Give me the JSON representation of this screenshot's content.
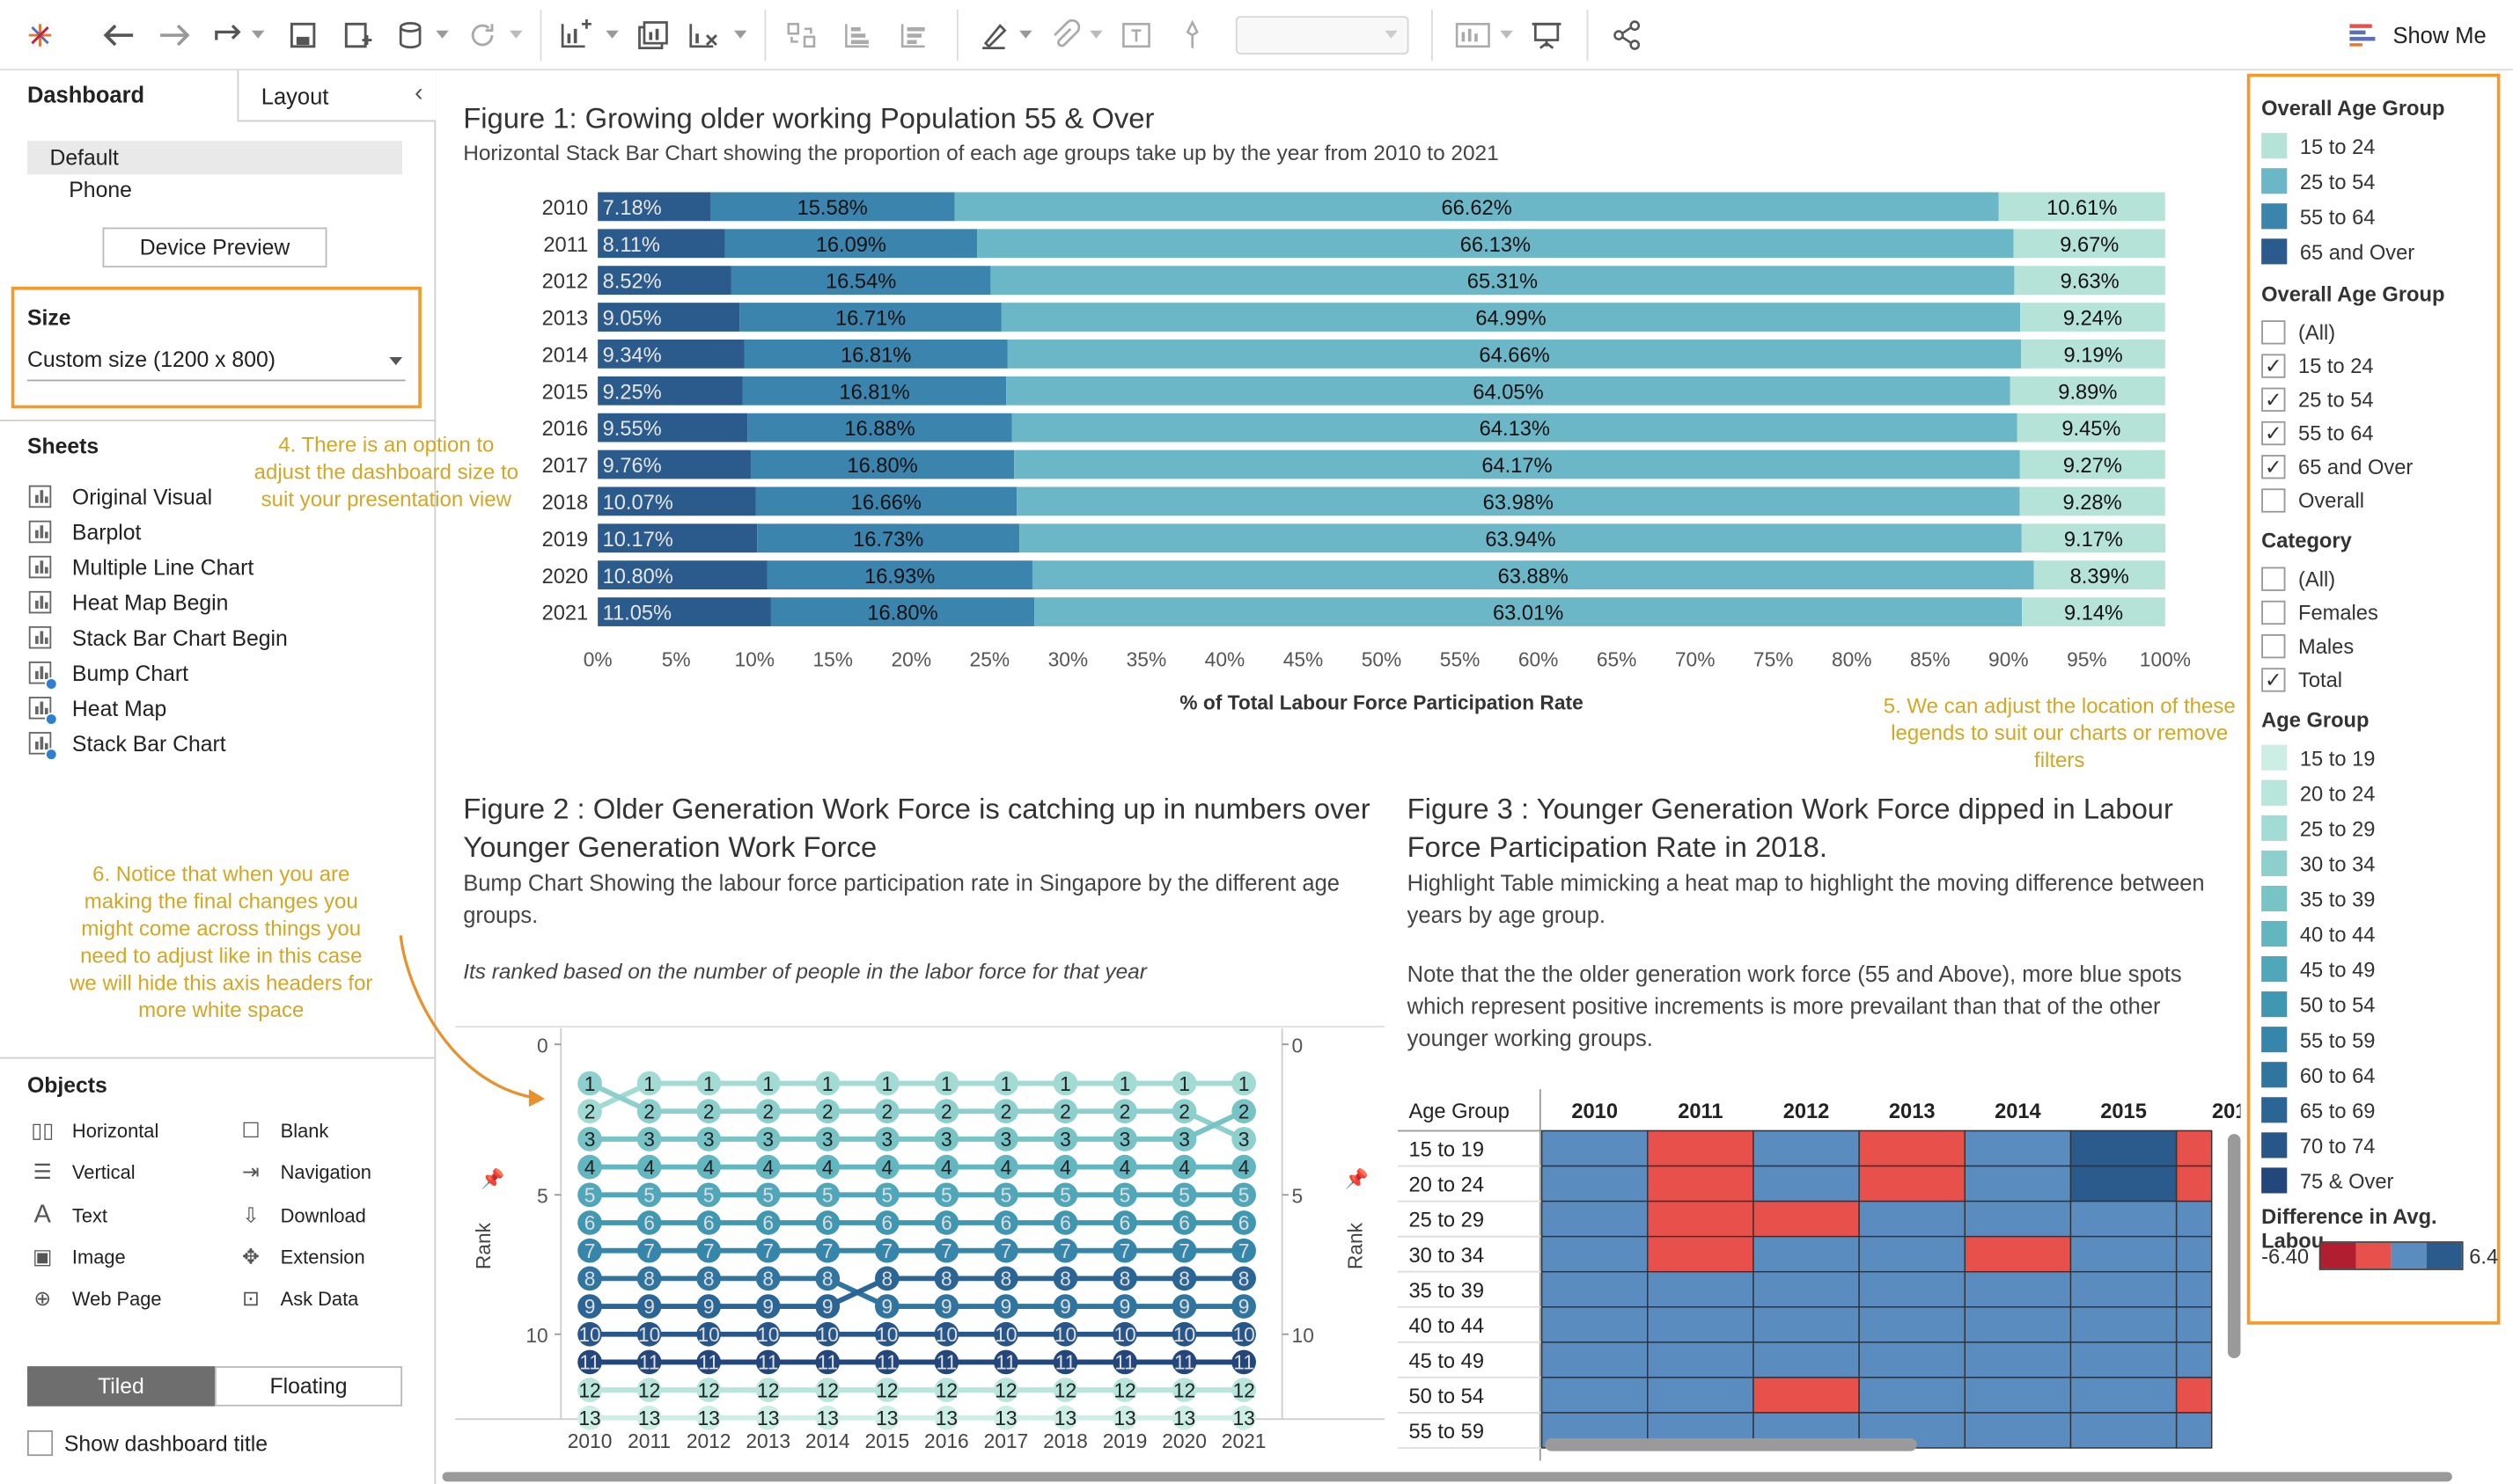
{
  "toolbar": {
    "show_me_label": "Show Me"
  },
  "sidebar": {
    "tabs": [
      "Dashboard",
      "Layout"
    ],
    "device": {
      "default": "Default",
      "phone": "Phone",
      "preview_button": "Device Preview"
    },
    "size": {
      "heading": "Size",
      "value": "Custom size (1200 x 800)"
    },
    "sheets_heading": "Sheets",
    "sheets": [
      {
        "label": "Original Visual",
        "used": false
      },
      {
        "label": "Barplot",
        "used": false
      },
      {
        "label": "Multiple Line Chart",
        "used": false
      },
      {
        "label": "Heat Map Begin",
        "used": false
      },
      {
        "label": "Stack Bar Chart Begin",
        "used": false
      },
      {
        "label": "Bump Chart",
        "used": true
      },
      {
        "label": "Heat Map",
        "used": true
      },
      {
        "label": "Stack Bar Chart",
        "used": true
      }
    ],
    "objects_heading": "Objects",
    "objects": [
      {
        "label": "Horizontal",
        "icon": "horizontal-container-icon"
      },
      {
        "label": "Blank",
        "icon": "blank-icon"
      },
      {
        "label": "Vertical",
        "icon": "vertical-container-icon"
      },
      {
        "label": "Navigation",
        "icon": "navigation-icon"
      },
      {
        "label": "Text",
        "icon": "text-icon"
      },
      {
        "label": "Download",
        "icon": "download-icon"
      },
      {
        "label": "Image",
        "icon": "image-icon"
      },
      {
        "label": "Extension",
        "icon": "extension-icon"
      },
      {
        "label": "Web Page",
        "icon": "web-page-icon"
      },
      {
        "label": "Ask Data",
        "icon": "ask-data-icon"
      }
    ],
    "layout_toggle": {
      "tiled": "Tiled",
      "floating": "Floating"
    },
    "show_title_label": "Show dashboard title"
  },
  "annotations": {
    "a4": "4. There is an option to adjust the dashboard size to suit your presentation view",
    "a5": "5. We can adjust the location of these legends to suit our charts or remove filters",
    "a6": "6. Notice that when you are making the final changes you might come across things you need to adjust like in this case we will hide this axis headers for more white space"
  },
  "figure1": {
    "title": "Figure 1: Growing older working Population 55 & Over",
    "subtitle": "Horizontal Stack Bar Chart showing the proportion of each age groups take up by the year from 2010 to 2021",
    "xlabel": "% of Total Labour Force Participation Rate"
  },
  "figure2": {
    "title": "Figure 2 : Older Generation Work Force is catching up in numbers over  Younger Generation Work Force",
    "subtitle": "Bump Chart Showing the labour force participation rate in Singapore by the different age groups.",
    "note": "Its ranked based on the number of people in the labor force for that year",
    "axis_label": "Rank"
  },
  "figure3": {
    "title": "Figure 3 : Younger Generation Work Force dipped in Labour Force Participation Rate in 2018.",
    "subtitle": "Highlight Table mimicking a heat map to highlight the moving difference between years by age group.",
    "note": "Note that the the older generation work force (55 and Above), more blue spots which represent positive increments is more  prevailant than that of the other younger working groups.",
    "row_header": "Age Group"
  },
  "legends": {
    "overall_age_group_color": {
      "title": "Overall Age Group",
      "items": [
        {
          "label": "15 to 24",
          "color": "#b6e3d8"
        },
        {
          "label": "25 to 54",
          "color": "#6cb7c7"
        },
        {
          "label": "55 to 64",
          "color": "#3a84ad"
        },
        {
          "label": "65 and Over",
          "color": "#2b5a8c"
        }
      ]
    },
    "overall_age_group_filter": {
      "title": "Overall Age Group",
      "items": [
        {
          "label": "(All)",
          "checked": false
        },
        {
          "label": "15 to 24",
          "checked": true
        },
        {
          "label": "25 to 54",
          "checked": true
        },
        {
          "label": "55 to 64",
          "checked": true
        },
        {
          "label": "65 and Over",
          "checked": true
        },
        {
          "label": "Overall",
          "checked": false
        }
      ]
    },
    "category_filter": {
      "title": "Category",
      "items": [
        {
          "label": "(All)",
          "checked": false
        },
        {
          "label": "Females",
          "checked": false
        },
        {
          "label": "Males",
          "checked": false
        },
        {
          "label": "Total",
          "checked": true
        }
      ]
    },
    "age_group_color": {
      "title": "Age Group",
      "items": [
        {
          "label": "15 to 19",
          "color": "#cdeee5"
        },
        {
          "label": "20 to 24",
          "color": "#b8e5dc"
        },
        {
          "label": "25 to 29",
          "color": "#a2dbd3"
        },
        {
          "label": "30 to 34",
          "color": "#8ccfcc"
        },
        {
          "label": "35 to 39",
          "color": "#77c3c6"
        },
        {
          "label": "40 to 44",
          "color": "#62b6c0"
        },
        {
          "label": "45 to 49",
          "color": "#4fa7b9"
        },
        {
          "label": "50 to 54",
          "color": "#3f97b1"
        },
        {
          "label": "55 to 59",
          "color": "#3586aa"
        },
        {
          "label": "60 to 64",
          "color": "#2f75a0"
        },
        {
          "label": "65 to 69",
          "color": "#2b6595"
        },
        {
          "label": "70 to 74",
          "color": "#285689"
        },
        {
          "label": "75 & Over",
          "color": "#24477b"
        }
      ]
    },
    "difference": {
      "title": "Difference in Avg. Labou",
      "min_label": "-6.40",
      "max_label": "6.4",
      "colors": [
        "#b01e2f",
        "#e8504b",
        "#5b8cc0",
        "#2b5a8c"
      ]
    }
  },
  "chart_data": [
    {
      "type": "bar",
      "orientation": "horizontal",
      "stacked": true,
      "categories": [
        "2010",
        "2011",
        "2012",
        "2013",
        "2014",
        "2015",
        "2016",
        "2017",
        "2018",
        "2019",
        "2020",
        "2021"
      ],
      "series": [
        {
          "name": "65 and Over",
          "color": "#2b5a8c",
          "values": [
            7.18,
            8.11,
            8.52,
            9.05,
            9.34,
            9.25,
            9.55,
            9.76,
            10.07,
            10.17,
            10.8,
            11.05
          ]
        },
        {
          "name": "55 to 64",
          "color": "#3a84ad",
          "values": [
            15.58,
            16.09,
            16.54,
            16.71,
            16.81,
            16.81,
            16.88,
            16.8,
            16.66,
            16.73,
            16.93,
            16.8
          ]
        },
        {
          "name": "25 to 54",
          "color": "#6cb7c7",
          "values": [
            66.62,
            66.13,
            65.31,
            64.99,
            64.66,
            64.05,
            64.13,
            64.17,
            63.98,
            63.94,
            63.88,
            63.01
          ]
        },
        {
          "name": "15 to 24",
          "color": "#b6e3d8",
          "values": [
            10.61,
            9.67,
            9.63,
            9.24,
            9.19,
            9.89,
            9.45,
            9.27,
            9.28,
            9.17,
            8.39,
            9.14
          ]
        }
      ],
      "xticks": [
        "0%",
        "5%",
        "10%",
        "15%",
        "20%",
        "25%",
        "30%",
        "35%",
        "40%",
        "45%",
        "50%",
        "55%",
        "60%",
        "65%",
        "70%",
        "75%",
        "80%",
        "85%",
        "90%",
        "95%",
        "100%"
      ],
      "xlim": [
        0,
        100
      ]
    },
    {
      "type": "line",
      "subtype": "bump",
      "x": [
        "2010",
        "2011",
        "2012",
        "2013",
        "2014",
        "2015",
        "2016",
        "2017",
        "2018",
        "2019",
        "2020",
        "2021"
      ],
      "ylim": [
        0,
        13
      ],
      "yticks": [
        0,
        5,
        10
      ],
      "series": [
        {
          "name": "15 to 19",
          "color": "#cdeee5",
          "ranks": [
            13,
            13,
            13,
            13,
            13,
            13,
            13,
            13,
            13,
            13,
            13,
            13
          ]
        },
        {
          "name": "20 to 24",
          "color": "#b8e5dc",
          "ranks": [
            12,
            12,
            12,
            12,
            12,
            12,
            12,
            12,
            12,
            12,
            12,
            12
          ]
        },
        {
          "name": "25 to 29",
          "color": "#a2dbd3",
          "ranks": [
            2,
            1,
            1,
            1,
            1,
            1,
            1,
            1,
            1,
            1,
            1,
            1
          ]
        },
        {
          "name": "30 to 34",
          "color": "#8ccfcc",
          "ranks": [
            1,
            2,
            2,
            2,
            2,
            2,
            2,
            2,
            2,
            2,
            2,
            3
          ]
        },
        {
          "name": "35 to 39",
          "color": "#77c3c6",
          "ranks": [
            3,
            3,
            3,
            3,
            3,
            3,
            3,
            3,
            3,
            3,
            3,
            2
          ]
        },
        {
          "name": "40 to 44",
          "color": "#62b6c0",
          "ranks": [
            4,
            4,
            4,
            4,
            4,
            4,
            4,
            4,
            4,
            4,
            4,
            4
          ]
        },
        {
          "name": "45 to 49",
          "color": "#4fa7b9",
          "ranks": [
            5,
            5,
            5,
            5,
            5,
            5,
            5,
            5,
            5,
            5,
            5,
            5
          ]
        },
        {
          "name": "50 to 54",
          "color": "#3f97b1",
          "ranks": [
            6,
            6,
            6,
            6,
            6,
            6,
            6,
            6,
            6,
            6,
            6,
            6
          ]
        },
        {
          "name": "55 to 59",
          "color": "#3586aa",
          "ranks": [
            7,
            7,
            7,
            7,
            7,
            7,
            7,
            7,
            7,
            7,
            7,
            7
          ]
        },
        {
          "name": "60 to 64",
          "color": "#2f75a0",
          "ranks": [
            8,
            8,
            8,
            8,
            8,
            9,
            9,
            9,
            9,
            9,
            9,
            9
          ]
        },
        {
          "name": "65 to 69",
          "color": "#2b6595",
          "ranks": [
            9,
            9,
            9,
            9,
            9,
            8,
            8,
            8,
            8,
            8,
            8,
            8
          ]
        },
        {
          "name": "70 to 74",
          "color": "#285689",
          "ranks": [
            10,
            10,
            10,
            10,
            10,
            10,
            10,
            10,
            10,
            10,
            10,
            10
          ]
        },
        {
          "name": "75 & Over",
          "color": "#24477b",
          "ranks": [
            11,
            11,
            11,
            11,
            11,
            11,
            11,
            11,
            11,
            11,
            11,
            11
          ]
        }
      ]
    },
    {
      "type": "heatmap",
      "columns": [
        "2010",
        "2011",
        "2012",
        "2013",
        "2014",
        "2015",
        "201"
      ],
      "rows": [
        "15 to 19",
        "20 to 24",
        "25 to 29",
        "30 to 34",
        "35 to 39",
        "40 to 44",
        "45 to 49",
        "50 to 54",
        "55 to 59"
      ],
      "cell_colors": [
        [
          "#5b8cc0",
          "#e8504b",
          "#5b8cc0",
          "#e8504b",
          "#5b8cc0",
          "#2b5a8c",
          "#e8504b"
        ],
        [
          "#5b8cc0",
          "#e8504b",
          "#5b8cc0",
          "#e8504b",
          "#5b8cc0",
          "#2b5a8c",
          "#e8504b"
        ],
        [
          "#5b8cc0",
          "#e8504b",
          "#e8504b",
          "#5b8cc0",
          "#5b8cc0",
          "#5b8cc0",
          "#5b8cc0"
        ],
        [
          "#5b8cc0",
          "#e8504b",
          "#5b8cc0",
          "#5b8cc0",
          "#e8504b",
          "#5b8cc0",
          "#5b8cc0"
        ],
        [
          "#5b8cc0",
          "#5b8cc0",
          "#5b8cc0",
          "#5b8cc0",
          "#5b8cc0",
          "#5b8cc0",
          "#5b8cc0"
        ],
        [
          "#5b8cc0",
          "#5b8cc0",
          "#5b8cc0",
          "#5b8cc0",
          "#5b8cc0",
          "#5b8cc0",
          "#5b8cc0"
        ],
        [
          "#5b8cc0",
          "#5b8cc0",
          "#5b8cc0",
          "#5b8cc0",
          "#5b8cc0",
          "#5b8cc0",
          "#5b8cc0"
        ],
        [
          "#5b8cc0",
          "#5b8cc0",
          "#e8504b",
          "#5b8cc0",
          "#5b8cc0",
          "#5b8cc0",
          "#e8504b"
        ],
        [
          "#5b8cc0",
          "#5b8cc0",
          "#5b8cc0",
          "#5b8cc0",
          "#5b8cc0",
          "#5b8cc0",
          "#5b8cc0"
        ]
      ]
    }
  ]
}
